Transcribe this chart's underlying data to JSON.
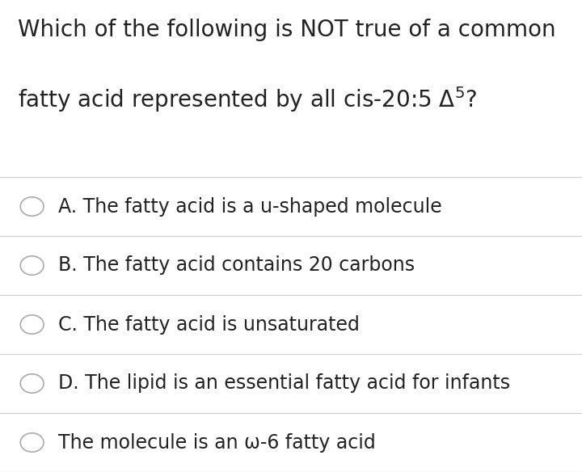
{
  "background_color": "#ffffff",
  "title_line1": "Which of the following is NOT true of a common",
  "title_line2": "fatty acid represented by all cis-20:5 Δ5?",
  "options": [
    "A. The fatty acid is a u-shaped molecule",
    "B. The fatty acid contains 20 carbons",
    "C. The fatty acid is unsaturated",
    "D. The lipid is an essential fatty acid for infants",
    "The molecule is an ω-6 fatty acid"
  ],
  "font_size_title": 20,
  "font_size_options": 17,
  "circle_color": "#aaaaaa",
  "line_color": "#cccccc",
  "text_color": "#222222",
  "fig_width": 7.2,
  "fig_height": 5.84,
  "dpi": 100
}
